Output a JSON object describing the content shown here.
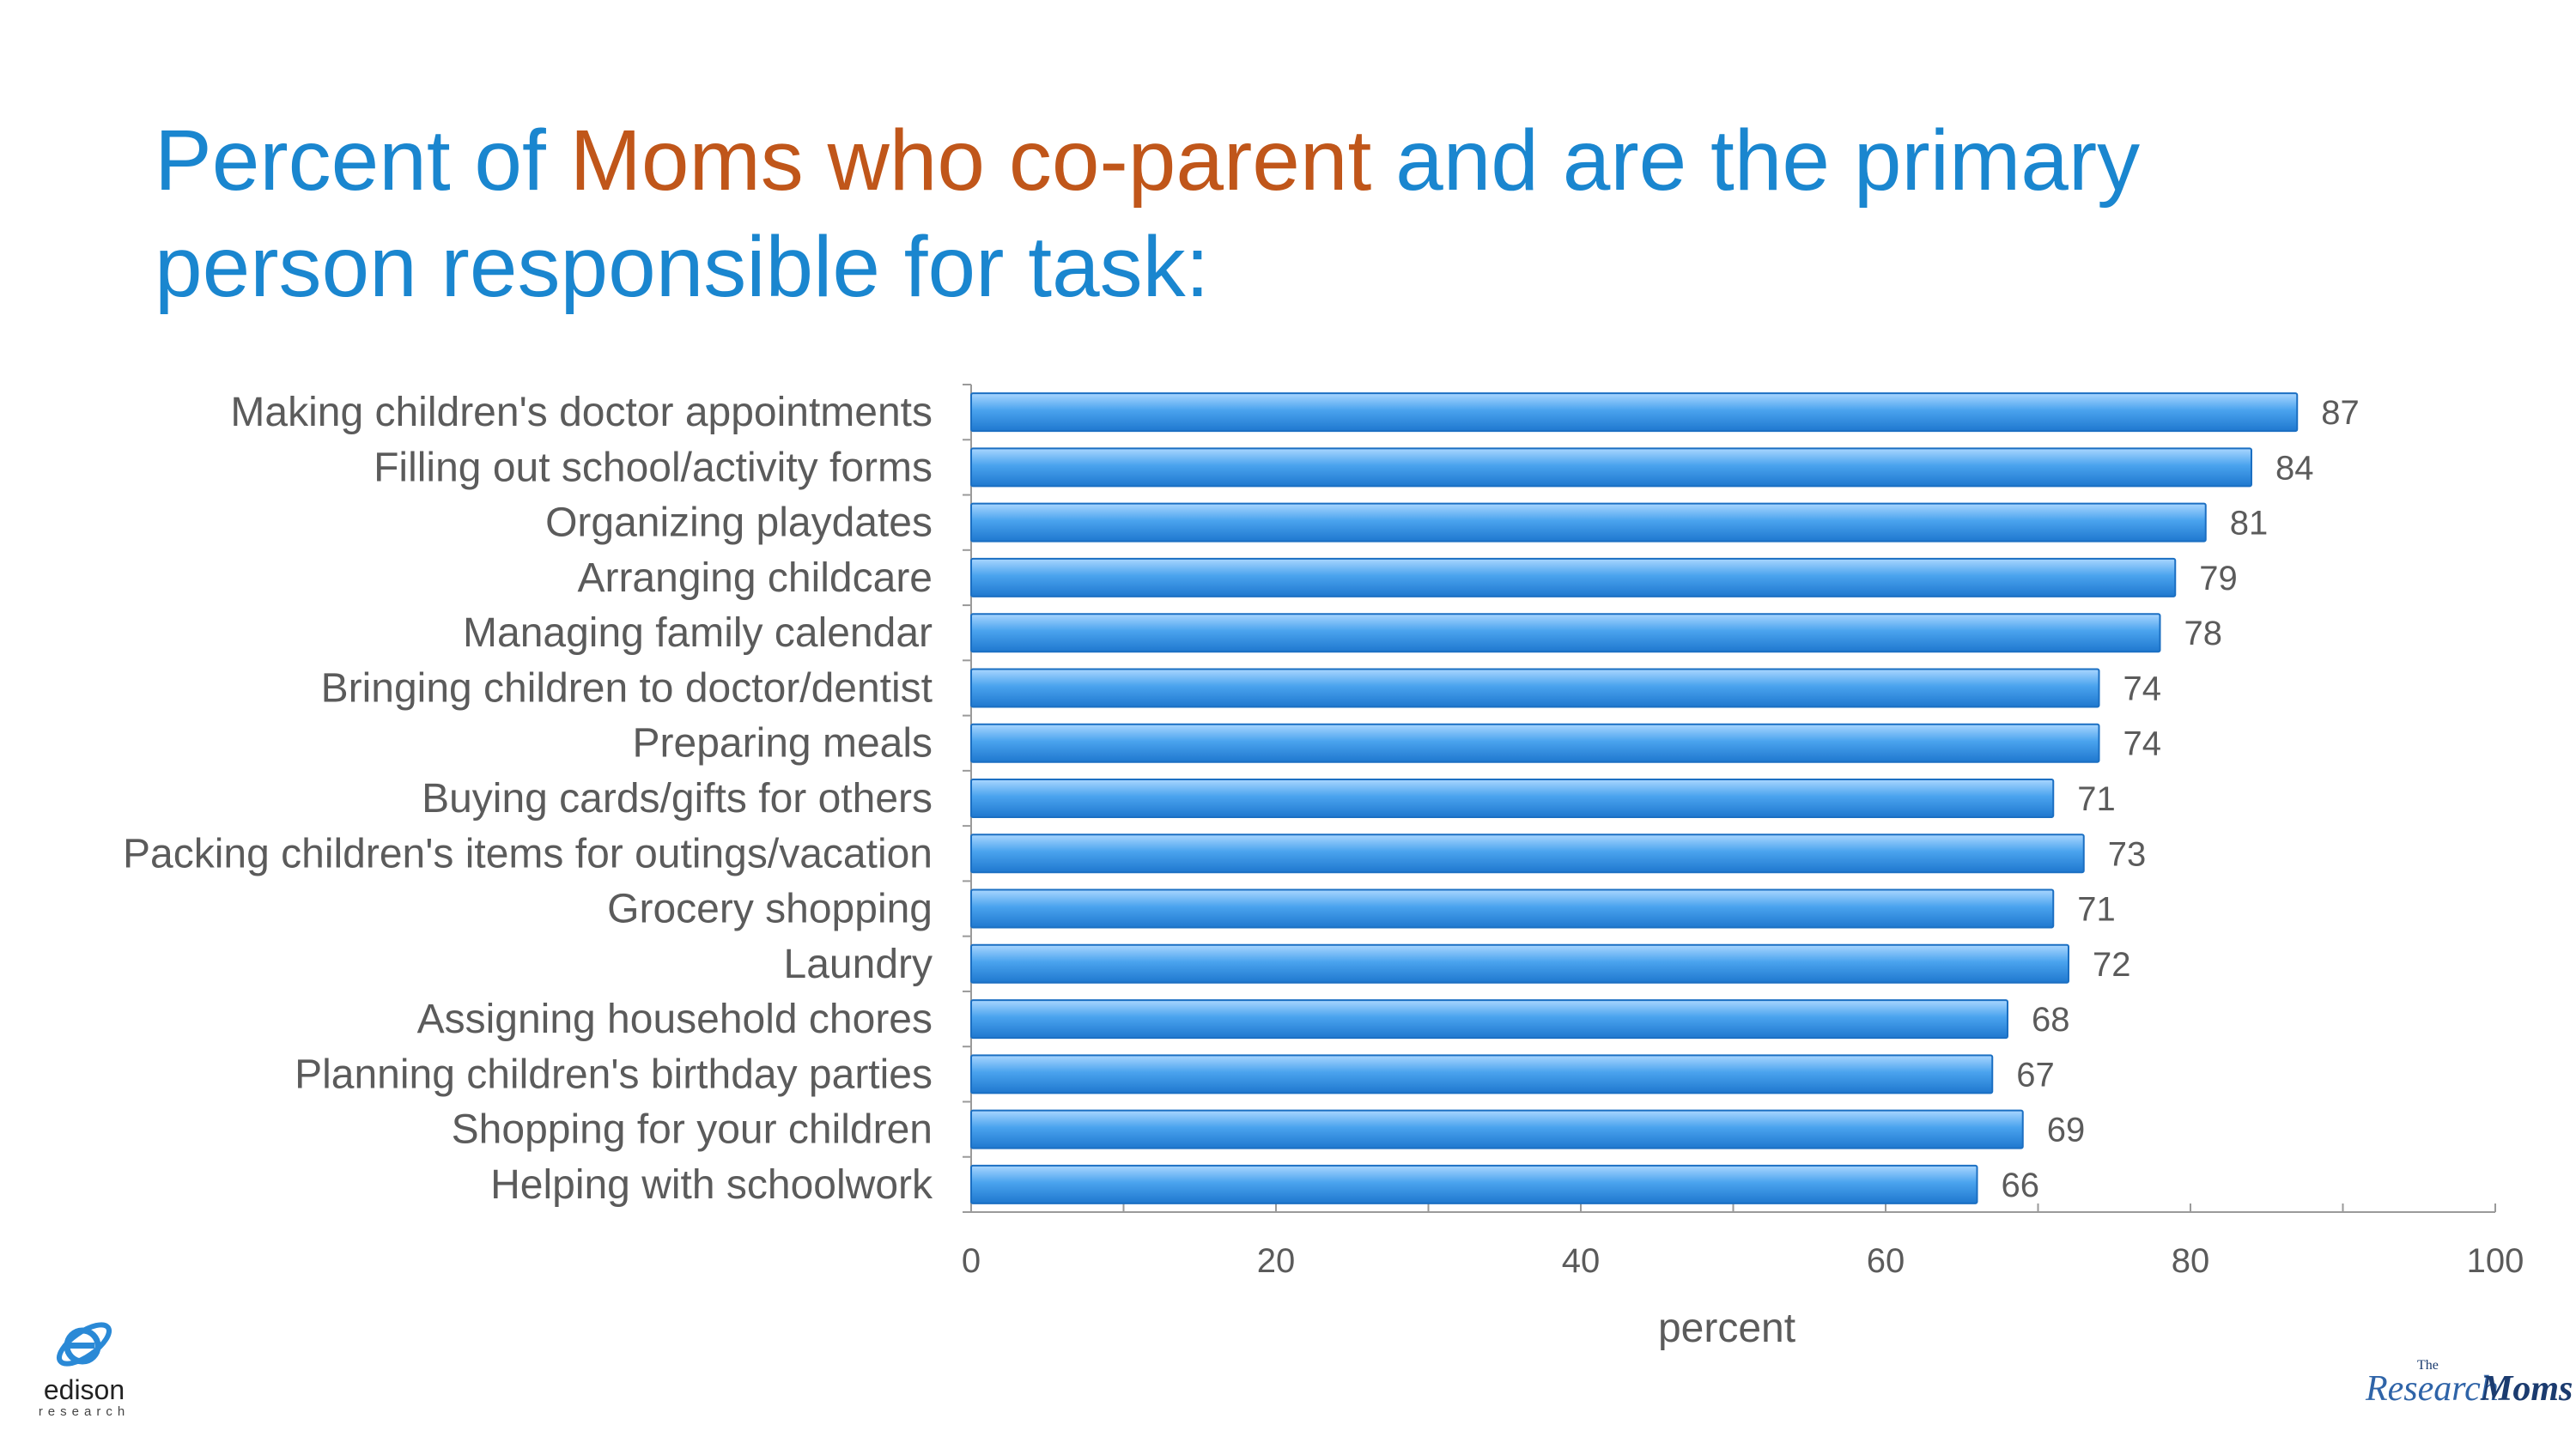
{
  "title": {
    "part1": "Percent of ",
    "highlight": "Moms who co-parent",
    "part2": " and are the primary person responsible for task:"
  },
  "colors": {
    "title": "#1a86cf",
    "title_highlight": "#c0561a",
    "bar": "#3f9ae8",
    "label_text": "#5b5b5b"
  },
  "chart_data": {
    "type": "bar",
    "orientation": "horizontal",
    "categories": [
      "Making children's doctor appointments",
      "Filling out school/activity forms",
      "Organizing playdates",
      "Arranging childcare",
      "Managing family calendar",
      "Bringing children to doctor/dentist",
      "Preparing meals",
      "Buying cards/gifts for others",
      "Packing children's items for outings/vacation",
      "Grocery shopping",
      "Laundry",
      "Assigning household chores",
      "Planning children's birthday parties",
      "Shopping for your children",
      "Helping with schoolwork"
    ],
    "values": [
      87,
      84,
      81,
      79,
      78,
      74,
      74,
      71,
      73,
      71,
      72,
      68,
      67,
      69,
      66
    ],
    "xlabel": "percent",
    "ylabel": "",
    "xlim": [
      0,
      100
    ],
    "xticks": [
      0,
      20,
      40,
      60,
      80,
      100
    ],
    "grid": false,
    "data_labels": true
  },
  "logos": {
    "edison": {
      "word": "edison",
      "sub": "research",
      "icon": "edison-bulb-icon"
    },
    "research_moms": {
      "the": "The",
      "research": "Research",
      "moms": "Moms"
    }
  }
}
